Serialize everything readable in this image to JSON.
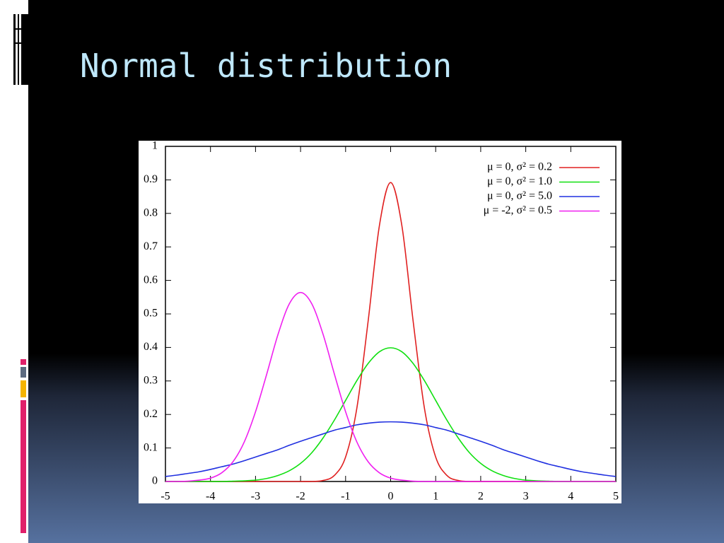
{
  "title": "Normal distribution",
  "chart_data": {
    "type": "line",
    "x": [
      -5,
      -4.75,
      -4.5,
      -4.25,
      -4,
      -3.75,
      -3.5,
      -3.25,
      -3,
      -2.75,
      -2.5,
      -2.25,
      -2,
      -1.75,
      -1.5,
      -1.25,
      -1,
      -0.75,
      -0.5,
      -0.25,
      0,
      0.25,
      0.5,
      0.75,
      1,
      1.25,
      1.5,
      1.75,
      2,
      2.25,
      2.5,
      2.75,
      3,
      3.25,
      3.5,
      3.75,
      4,
      4.25,
      4.5,
      4.75,
      5
    ],
    "series": [
      {
        "name": "μ =  0, σ² = 0.2",
        "color": "#e02020",
        "values": [
          0,
          0,
          0,
          0,
          0,
          0,
          0,
          0,
          0,
          0,
          0,
          0,
          0,
          0,
          0.003,
          0.018,
          0.073,
          0.219,
          0.478,
          0.763,
          0.892,
          0.763,
          0.478,
          0.219,
          0.073,
          0.018,
          0.003,
          0,
          0,
          0,
          0,
          0,
          0,
          0,
          0,
          0,
          0,
          0,
          0,
          0,
          0
        ]
      },
      {
        "name": "μ =  0, σ² = 1.0",
        "color": "#10e010",
        "values": [
          0,
          0,
          0,
          0,
          0,
          0,
          0.001,
          0.002,
          0.004,
          0.009,
          0.018,
          0.032,
          0.054,
          0.086,
          0.13,
          0.183,
          0.242,
          0.301,
          0.352,
          0.387,
          0.399,
          0.387,
          0.352,
          0.301,
          0.242,
          0.183,
          0.13,
          0.086,
          0.054,
          0.032,
          0.018,
          0.009,
          0.004,
          0.002,
          0.001,
          0,
          0,
          0,
          0,
          0,
          0
        ]
      },
      {
        "name": "μ =  0, σ² = 5.0",
        "color": "#2030e0",
        "values": [
          0.015,
          0.019,
          0.024,
          0.029,
          0.036,
          0.044,
          0.052,
          0.062,
          0.073,
          0.084,
          0.095,
          0.108,
          0.12,
          0.131,
          0.142,
          0.153,
          0.161,
          0.169,
          0.174,
          0.177,
          0.178,
          0.177,
          0.174,
          0.169,
          0.161,
          0.153,
          0.142,
          0.131,
          0.12,
          0.108,
          0.095,
          0.084,
          0.073,
          0.062,
          0.052,
          0.044,
          0.036,
          0.029,
          0.024,
          0.019,
          0.015
        ]
      },
      {
        "name": "μ = -2, σ² = 0.5",
        "color": "#f020f0",
        "values": [
          0,
          0,
          0.001,
          0.004,
          0.01,
          0.026,
          0.059,
          0.118,
          0.208,
          0.321,
          0.439,
          0.53,
          0.564,
          0.53,
          0.439,
          0.321,
          0.208,
          0.118,
          0.059,
          0.026,
          0.01,
          0.004,
          0.001,
          0,
          0,
          0,
          0,
          0,
          0,
          0,
          0,
          0,
          0,
          0,
          0,
          0,
          0,
          0,
          0,
          0,
          0
        ]
      }
    ],
    "xlim": [
      -5,
      5
    ],
    "xticks": [
      -5,
      -4,
      -3,
      -2,
      -1,
      0,
      1,
      2,
      3,
      4,
      5
    ],
    "ylim": [
      0,
      1
    ],
    "yticks": [
      0,
      0.1,
      0.2,
      0.3,
      0.4,
      0.5,
      0.6,
      0.7,
      0.8,
      0.9,
      1
    ],
    "legend": "top-right"
  }
}
